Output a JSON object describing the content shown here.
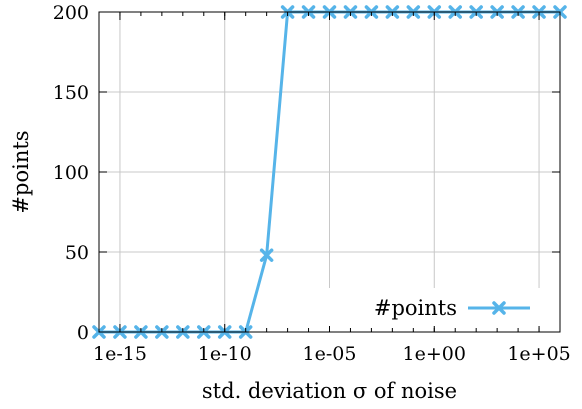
{
  "chart_data": {
    "type": "line",
    "title": "",
    "xlabel": "std. deviation σ of noise",
    "ylabel": "#points",
    "x_scale": "log",
    "xlim": [
      1e-16,
      1000000.0
    ],
    "ylim": [
      0,
      200
    ],
    "x_ticks": [
      {
        "value": 1e-15,
        "label": "1e-15"
      },
      {
        "value": 1e-10,
        "label": "1e-10"
      },
      {
        "value": 1e-05,
        "label": "1e-05"
      },
      {
        "value": 1,
        "label": "1e+00"
      },
      {
        "value": 100000.0,
        "label": "1e+05"
      }
    ],
    "y_ticks": [
      {
        "value": 0,
        "label": "0"
      },
      {
        "value": 50,
        "label": "50"
      },
      {
        "value": 100,
        "label": "100"
      },
      {
        "value": 150,
        "label": "150"
      },
      {
        "value": 200,
        "label": "200"
      }
    ],
    "grid": true,
    "legend_position": "bottom-right",
    "series": [
      {
        "name": "#points",
        "color": "#56b4e9",
        "marker": "x",
        "x": [
          1e-16,
          1e-15,
          1e-14,
          1e-13,
          1e-12,
          1e-11,
          1e-10,
          1e-09,
          1e-08,
          1e-07,
          1e-06,
          1e-05,
          0.0001,
          0.001,
          0.01,
          0.1,
          1,
          10.0,
          100.0,
          1000.0,
          10000.0,
          100000.0,
          1000000.0
        ],
        "y": [
          0,
          0,
          0,
          0,
          0,
          0,
          0,
          0,
          48,
          200,
          200,
          200,
          200,
          200,
          200,
          200,
          200,
          200,
          200,
          200,
          200,
          200,
          200
        ]
      }
    ]
  }
}
